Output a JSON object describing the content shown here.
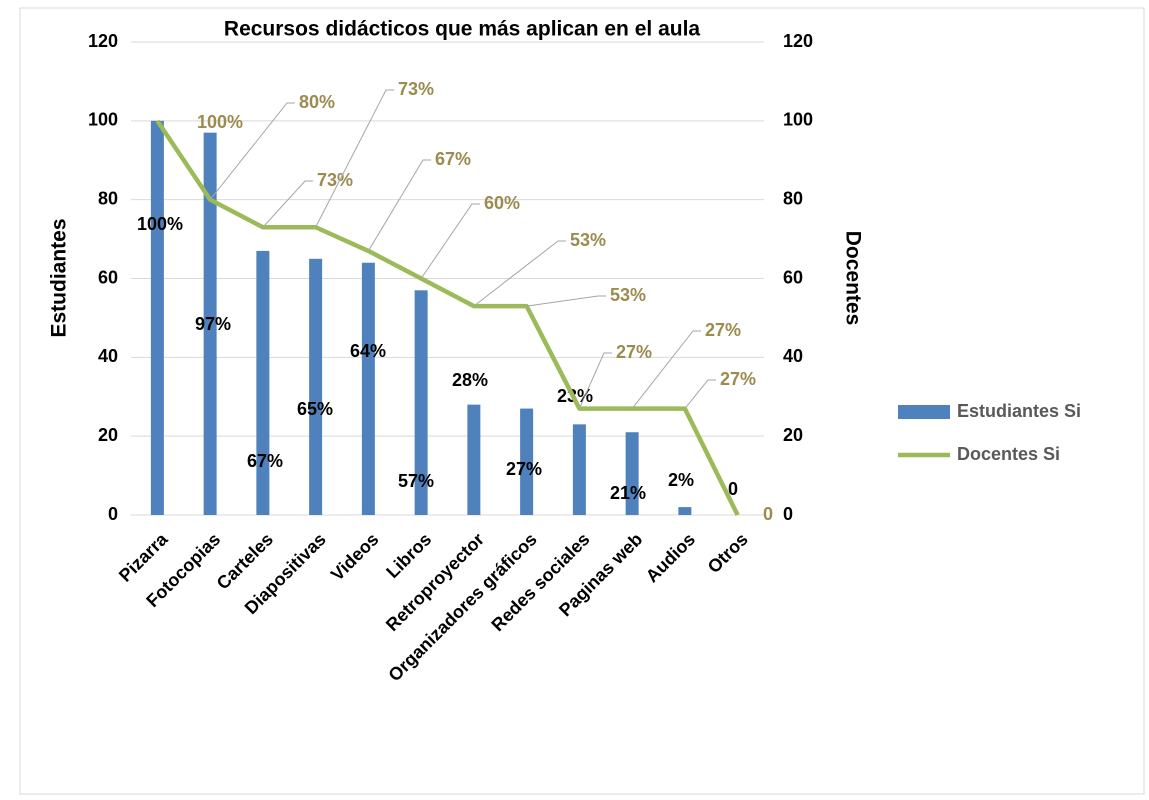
{
  "chart_data": {
    "type": "bar",
    "title": "Recursos didácticos que más aplican en el aula",
    "y_label": "Estudiantes",
    "y2_label": "Docentes",
    "categories": [
      "Pizarra",
      "Fotocopias",
      "Carteles",
      "Diapositivas",
      "Videos",
      "Libros",
      "Retroproyector",
      "Organizadores gráficos",
      "Redes sociales",
      "Paginas web",
      "Audios",
      "Otros"
    ],
    "series": [
      {
        "name": "Estudiantes Si",
        "type": "bar",
        "color": "#4f81bd",
        "values": [
          100,
          97,
          67,
          65,
          64,
          57,
          28,
          27,
          23,
          21,
          2,
          0
        ],
        "value_labels": [
          "100%",
          "97%",
          "67%",
          "65%",
          "64%",
          "57%",
          "28%",
          "27%",
          "23%",
          "21%",
          "2%",
          "0"
        ]
      },
      {
        "name": "Docentes Si",
        "type": "line",
        "axis": "y2",
        "color": "#9bbb59",
        "values": [
          100,
          80,
          73,
          73,
          67,
          60,
          53,
          53,
          27,
          27,
          27,
          0
        ],
        "value_labels": [
          "100%",
          "80%",
          "73%",
          "73%",
          "67%",
          "60%",
          "53%",
          "53%",
          "27%",
          "27%",
          "27%",
          "0"
        ]
      }
    ],
    "ylim": [
      0,
      120
    ],
    "yticks": [
      0,
      20,
      40,
      60,
      80,
      100,
      120
    ],
    "y2lim": [
      0,
      120
    ],
    "y2ticks": [
      0,
      20,
      40,
      60,
      80,
      100,
      120
    ],
    "grid": true,
    "legend": "right"
  }
}
